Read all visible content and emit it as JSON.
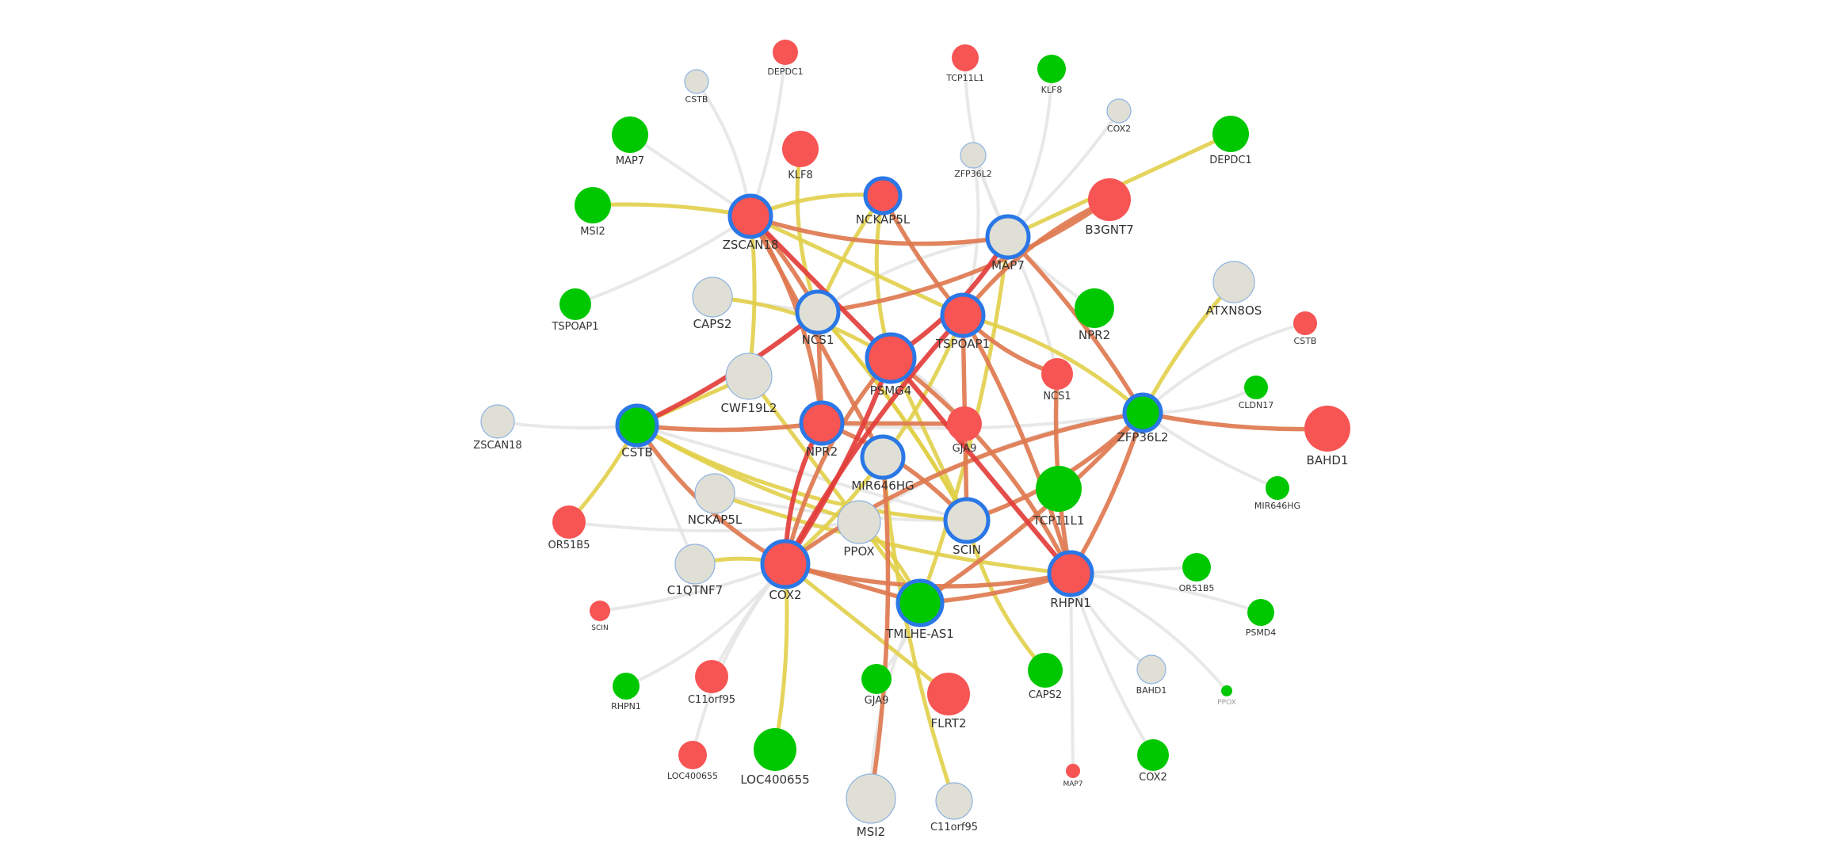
{
  "graph": {
    "colors": {
      "red": "#f75454",
      "green": "#00c800",
      "grey": "#dfdfd6",
      "hub_ring": "#2a77e6",
      "leaf_ring": "#8fb3e0",
      "edge_grey": "#e6e6e6",
      "edge_yellow": "#e1cf49",
      "edge_orange": "#de7a50",
      "edge_red": "#e23e3b"
    },
    "nodes": [
      {
        "id": "h_zscan18",
        "label": "ZSCAN18",
        "color": "red",
        "hub": true
      },
      {
        "id": "h_nckap5l",
        "label": "NCKAP5L",
        "color": "red",
        "hub": true
      },
      {
        "id": "h_map7",
        "label": "MAP7",
        "color": "grey",
        "hub": true
      },
      {
        "id": "h_ncs1",
        "label": "NCS1",
        "color": "grey",
        "hub": true
      },
      {
        "id": "h_tspoap1",
        "label": "TSPOAP1",
        "color": "red",
        "hub": true
      },
      {
        "id": "h_psmg4",
        "label": "PSMG4",
        "color": "red",
        "hub": true
      },
      {
        "id": "h_cstb",
        "label": "CSTB",
        "color": "green",
        "hub": true
      },
      {
        "id": "h_npr2",
        "label": "NPR2",
        "color": "red",
        "hub": true
      },
      {
        "id": "h_mir646hg",
        "label": "MIR646HG",
        "color": "grey",
        "hub": true
      },
      {
        "id": "h_zfp36l2",
        "label": "ZFP36L2",
        "color": "green",
        "hub": true
      },
      {
        "id": "h_scin",
        "label": "SCIN",
        "color": "grey",
        "hub": true
      },
      {
        "id": "h_cox2",
        "label": "COX2",
        "color": "red",
        "hub": true
      },
      {
        "id": "h_tmlhe",
        "label": "TMLHE-AS1",
        "color": "green",
        "hub": true
      },
      {
        "id": "h_rhpn1",
        "label": "RHPN1",
        "color": "red",
        "hub": true
      },
      {
        "id": "l_depdc1_top",
        "label": "DEPDC1",
        "color": "red",
        "hub": false
      },
      {
        "id": "l_cstb_top",
        "label": "CSTB",
        "color": "grey",
        "hub": false
      },
      {
        "id": "l_tcp11l1_top",
        "label": "TCP11L1",
        "color": "red",
        "hub": false
      },
      {
        "id": "l_klf8_top",
        "label": "KLF8",
        "color": "green",
        "hub": false
      },
      {
        "id": "l_cox2_top",
        "label": "COX2",
        "color": "grey",
        "hub": false
      },
      {
        "id": "l_map7_l",
        "label": "MAP7",
        "color": "green",
        "hub": false
      },
      {
        "id": "l_klf8_mid",
        "label": "KLF8",
        "color": "red",
        "hub": false
      },
      {
        "id": "l_zfp36l2_top",
        "label": "ZFP36L2",
        "color": "grey",
        "hub": false
      },
      {
        "id": "l_depdc1_r",
        "label": "DEPDC1",
        "color": "green",
        "hub": false
      },
      {
        "id": "l_msi2_l",
        "label": "MSI2",
        "color": "green",
        "hub": false
      },
      {
        "id": "l_b3gnt7",
        "label": "B3GNT7",
        "color": "red",
        "hub": false
      },
      {
        "id": "l_tspoap1_l",
        "label": "TSPOAP1",
        "color": "green",
        "hub": false
      },
      {
        "id": "l_caps2_l",
        "label": "CAPS2",
        "color": "grey",
        "hub": false
      },
      {
        "id": "l_npr2_r",
        "label": "NPR2",
        "color": "green",
        "hub": false
      },
      {
        "id": "l_atxn8os",
        "label": "ATXN8OS",
        "color": "grey",
        "hub": false
      },
      {
        "id": "l_cstb_r",
        "label": "CSTB",
        "color": "red",
        "hub": false
      },
      {
        "id": "l_cwf19l2",
        "label": "CWF19L2",
        "color": "grey",
        "hub": false
      },
      {
        "id": "l_ncs1_r",
        "label": "NCS1",
        "color": "red",
        "hub": false
      },
      {
        "id": "l_cldn17",
        "label": "CLDN17",
        "color": "green",
        "hub": false
      },
      {
        "id": "l_zscan18_l",
        "label": "ZSCAN18",
        "color": "grey",
        "hub": false
      },
      {
        "id": "l_gja9_mid",
        "label": "GJA9",
        "color": "red",
        "hub": false
      },
      {
        "id": "l_bahd1_r",
        "label": "BAHD1",
        "color": "red",
        "hub": false
      },
      {
        "id": "l_mir646hg_r",
        "label": "MIR646HG",
        "color": "green",
        "hub": false
      },
      {
        "id": "l_tcp11l1_mid",
        "label": "TCP11L1",
        "color": "green",
        "hub": false
      },
      {
        "id": "l_nckap5l_l",
        "label": "NCKAP5L",
        "color": "grey",
        "hub": false
      },
      {
        "id": "l_or51b5_l",
        "label": "OR51B5",
        "color": "red",
        "hub": false
      },
      {
        "id": "l_ppox_mid",
        "label": "PPOX",
        "color": "grey",
        "hub": false
      },
      {
        "id": "l_c1qtnf7",
        "label": "C1QTNF7",
        "color": "grey",
        "hub": false
      },
      {
        "id": "l_or51b5_r",
        "label": "OR51B5",
        "color": "green",
        "hub": false
      },
      {
        "id": "l_scin_l",
        "label": "SCIN",
        "color": "red",
        "hub": false
      },
      {
        "id": "l_psmd4",
        "label": "PSMD4",
        "color": "green",
        "hub": false
      },
      {
        "id": "l_rhpn1_l",
        "label": "RHPN1",
        "color": "green",
        "hub": false
      },
      {
        "id": "l_c11orf95_l",
        "label": "C11orf95",
        "color": "red",
        "hub": false
      },
      {
        "id": "l_gja9_b",
        "label": "GJA9",
        "color": "green",
        "hub": false
      },
      {
        "id": "l_flrt2",
        "label": "FLRT2",
        "color": "red",
        "hub": false
      },
      {
        "id": "l_caps2_b",
        "label": "CAPS2",
        "color": "green",
        "hub": false
      },
      {
        "id": "l_bahd1_b",
        "label": "BAHD1",
        "color": "grey",
        "hub": false
      },
      {
        "id": "l_ppox_r",
        "label": "PPOX",
        "color": "green",
        "hub": false
      },
      {
        "id": "l_loc400655_s",
        "label": "LOC400655",
        "color": "red",
        "hub": false
      },
      {
        "id": "l_loc400655_b",
        "label": "LOC400655",
        "color": "green",
        "hub": false
      },
      {
        "id": "l_map7_b",
        "label": "MAP7",
        "color": "red",
        "hub": false
      },
      {
        "id": "l_cox2_b",
        "label": "COX2",
        "color": "green",
        "hub": false
      },
      {
        "id": "l_msi2_b",
        "label": "MSI2",
        "color": "grey",
        "hub": false
      },
      {
        "id": "l_c11orf95_b",
        "label": "C11orf95",
        "color": "grey",
        "hub": false
      }
    ],
    "edges": [
      [
        "l_cstb_top",
        "h_zscan18",
        "grey"
      ],
      [
        "l_depdc1_top",
        "h_zscan18",
        "grey"
      ],
      [
        "l_map7_l",
        "h_zscan18",
        "grey"
      ],
      [
        "l_tspoap1_l",
        "h_zscan18",
        "grey"
      ],
      [
        "l_tcp11l1_top",
        "h_map7",
        "grey"
      ],
      [
        "l_klf8_top",
        "h_map7",
        "grey"
      ],
      [
        "l_cox2_top",
        "h_map7",
        "grey"
      ],
      [
        "l_zfp36l2_top",
        "h_map7",
        "grey"
      ],
      [
        "l_zscan18_l",
        "h_cstb",
        "grey"
      ],
      [
        "l_cstb_r",
        "h_zfp36l2",
        "grey"
      ],
      [
        "l_cldn17",
        "h_zfp36l2",
        "grey"
      ],
      [
        "l_mir646hg_r",
        "h_zfp36l2",
        "grey"
      ],
      [
        "l_or51b5_r",
        "h_rhpn1",
        "grey"
      ],
      [
        "l_psmd4",
        "h_rhpn1",
        "grey"
      ],
      [
        "l_ppox_r",
        "h_rhpn1",
        "grey"
      ],
      [
        "l_bahd1_b",
        "h_rhpn1",
        "grey"
      ],
      [
        "l_cox2_b",
        "h_rhpn1",
        "grey"
      ],
      [
        "l_map7_b",
        "h_rhpn1",
        "grey"
      ],
      [
        "l_scin_l",
        "h_cox2",
        "grey"
      ],
      [
        "l_rhpn1_l",
        "h_cox2",
        "grey"
      ],
      [
        "l_loc400655_s",
        "h_cox2",
        "grey"
      ],
      [
        "l_c11orf95_l",
        "h_cox2",
        "grey"
      ],
      [
        "l_c1qtnf7",
        "h_cstb",
        "grey"
      ],
      [
        "l_or51b5_l",
        "h_ppox_link",
        "grey"
      ],
      [
        "l_gja9_b",
        "h_tmlhe",
        "grey"
      ],
      [
        "l_msi2_b",
        "h_tmlhe",
        "grey"
      ],
      [
        "l_npr2_r",
        "h_map7",
        "grey"
      ],
      [
        "l_caps2_l",
        "h_ncs1",
        "grey"
      ],
      [
        "l_ncs1_r",
        "h_map7",
        "grey"
      ],
      [
        "l_gja9_mid",
        "h_psmg4",
        "grey"
      ],
      [
        "l_zfp36l2_top",
        "h_tspoap1",
        "grey"
      ],
      [
        "h_zfp36l2",
        "h_npr2",
        "grey"
      ],
      [
        "h_cstb",
        "h_scin",
        "grey"
      ],
      [
        "l_nckap5l_l",
        "h_scin",
        "grey"
      ],
      [
        "h_map7",
        "h_ncs1",
        "grey"
      ],
      [
        "l_ppox_mid",
        "h_zfp36l2",
        "grey"
      ],
      [
        "l_msi2_l",
        "h_zscan18",
        "yellow"
      ],
      [
        "l_depdc1_r",
        "h_map7",
        "yellow"
      ],
      [
        "l_atxn8os",
        "h_zfp36l2",
        "yellow"
      ],
      [
        "l_klf8_mid",
        "h_ncs1",
        "yellow"
      ],
      [
        "h_zscan18",
        "h_nckap5l",
        "yellow"
      ],
      [
        "h_zscan18",
        "l_cwf19l2",
        "yellow"
      ],
      [
        "h_zscan18",
        "h_tspoap1",
        "yellow"
      ],
      [
        "h_nckap5l",
        "h_ncs1",
        "yellow"
      ],
      [
        "h_nckap5l",
        "h_psmg4",
        "yellow"
      ],
      [
        "l_caps2_l",
        "h_psmg4",
        "yellow"
      ],
      [
        "h_cstb",
        "l_or51b5_l",
        "yellow"
      ],
      [
        "h_cstb",
        "l_cwf19l2",
        "yellow"
      ],
      [
        "h_cstb",
        "l_ppox_mid",
        "yellow"
      ],
      [
        "h_cstb",
        "h_scin",
        "yellow"
      ],
      [
        "l_c1qtnf7",
        "h_cox2",
        "yellow"
      ],
      [
        "h_cox2",
        "l_loc400655_b",
        "yellow"
      ],
      [
        "h_cox2",
        "l_flrt2",
        "yellow"
      ],
      [
        "h_mir646hg",
        "l_c11orf95_b",
        "yellow"
      ],
      [
        "h_scin",
        "l_caps2_b",
        "yellow"
      ],
      [
        "h_tspoap1",
        "h_zfp36l2",
        "yellow"
      ],
      [
        "h_ncs1",
        "h_scin",
        "yellow"
      ],
      [
        "h_psmg4",
        "h_scin",
        "yellow"
      ],
      [
        "l_nckap5l_l",
        "h_rhpn1",
        "yellow"
      ],
      [
        "h_tmlhe",
        "l_ppox_mid",
        "yellow"
      ],
      [
        "h_tspoap1",
        "h_cox2",
        "yellow"
      ],
      [
        "h_map7",
        "h_tmlhe",
        "yellow"
      ],
      [
        "l_cwf19l2",
        "h_tmlhe",
        "yellow"
      ],
      [
        "h_scin",
        "h_ncs1",
        "yellow"
      ],
      [
        "h_zscan18",
        "h_map7",
        "orange"
      ],
      [
        "h_zscan18",
        "h_npr2",
        "orange"
      ],
      [
        "h_zscan18",
        "h_ncs1",
        "orange"
      ],
      [
        "h_zscan18",
        "h_mir646hg",
        "orange"
      ],
      [
        "h_nckap5l",
        "h_tspoap1",
        "orange"
      ],
      [
        "l_b3gnt7",
        "h_tspoap1",
        "orange"
      ],
      [
        "l_b3gnt7",
        "h_ncs1",
        "orange"
      ],
      [
        "h_map7",
        "h_zfp36l2",
        "orange"
      ],
      [
        "h_ncs1",
        "h_npr2",
        "orange"
      ],
      [
        "h_cstb",
        "h_npr2",
        "orange"
      ],
      [
        "h_cstb",
        "h_cox2",
        "orange"
      ],
      [
        "h_psmg4",
        "h_rhpn1",
        "orange"
      ],
      [
        "h_tspoap1",
        "h_rhpn1",
        "orange"
      ],
      [
        "h_tspoap1",
        "h_scin",
        "orange"
      ],
      [
        "h_zfp36l2",
        "l_bahd1_r",
        "orange"
      ],
      [
        "h_zfp36l2",
        "h_cox2",
        "orange"
      ],
      [
        "h_zfp36l2",
        "h_scin",
        "orange"
      ],
      [
        "h_zfp36l2",
        "h_tmlhe",
        "orange"
      ],
      [
        "h_cox2",
        "h_tmlhe",
        "orange"
      ],
      [
        "h_tmlhe",
        "h_rhpn1",
        "orange"
      ],
      [
        "h_cox2",
        "h_rhpn1",
        "orange"
      ],
      [
        "h_npr2",
        "h_scin",
        "orange"
      ],
      [
        "h_mir646hg",
        "l_msi2_b",
        "orange"
      ],
      [
        "h_npr2",
        "l_gja9_mid",
        "orange"
      ],
      [
        "l_ncs1_r",
        "h_rhpn1",
        "orange"
      ],
      [
        "h_psmg4",
        "h_cox2",
        "orange"
      ],
      [
        "l_ncs1_r",
        "h_tspoap1",
        "orange"
      ],
      [
        "h_zfp36l2",
        "h_rhpn1",
        "orange"
      ],
      [
        "h_zscan18",
        "h_psmg4",
        "red"
      ],
      [
        "h_cstb",
        "h_ncs1",
        "red"
      ],
      [
        "h_npr2",
        "h_cox2",
        "red"
      ],
      [
        "h_map7",
        "h_psmg4",
        "red"
      ],
      [
        "h_psmg4",
        "h_cox2",
        "red"
      ],
      [
        "h_psmg4",
        "h_rhpn1",
        "red"
      ],
      [
        "h_tspoap1",
        "h_cox2",
        "red"
      ]
    ]
  }
}
